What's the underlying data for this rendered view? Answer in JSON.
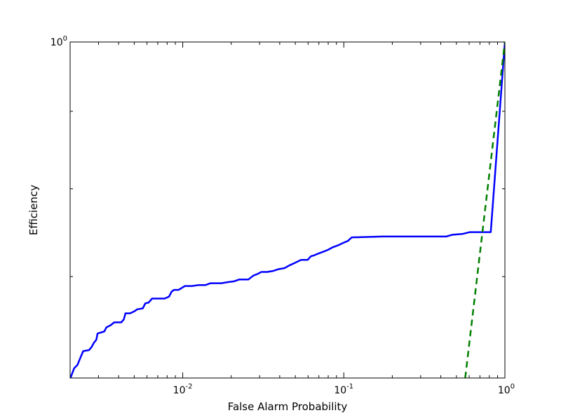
{
  "chart_data": {
    "type": "line",
    "title": "",
    "xlabel": "False Alarm Probability",
    "ylabel": "Efficiency",
    "xscale": "log",
    "yscale": "log",
    "xlim": [
      0.002,
      1.0
    ],
    "ylim": [
      0.6,
      1.0
    ],
    "grid": false,
    "x_tick_labels": [
      {
        "base": "10",
        "exp": "-2",
        "value": 0.01
      },
      {
        "base": "10",
        "exp": "-1",
        "value": 0.1
      },
      {
        "base": "10",
        "exp": "0",
        "value": 1.0
      }
    ],
    "y_tick_labels": [
      {
        "base": "10",
        "exp": "0",
        "value": 1.0
      }
    ],
    "series": [
      {
        "color": "#0000ff",
        "style": "solid",
        "points": [
          [
            0.00201,
            0.6
          ],
          [
            0.00207,
            0.605
          ],
          [
            0.00212,
            0.609
          ],
          [
            0.00222,
            0.612
          ],
          [
            0.00232,
            0.619
          ],
          [
            0.00241,
            0.625
          ],
          [
            0.00262,
            0.626
          ],
          [
            0.00272,
            0.629
          ],
          [
            0.00281,
            0.633
          ],
          [
            0.00291,
            0.636
          ],
          [
            0.00296,
            0.642
          ],
          [
            0.00311,
            0.643
          ],
          [
            0.00326,
            0.644
          ],
          [
            0.00336,
            0.648
          ],
          [
            0.00356,
            0.65
          ],
          [
            0.00376,
            0.653
          ],
          [
            0.00416,
            0.653
          ],
          [
            0.00431,
            0.656
          ],
          [
            0.00441,
            0.662
          ],
          [
            0.00471,
            0.662
          ],
          [
            0.00501,
            0.664
          ],
          [
            0.00521,
            0.666
          ],
          [
            0.00565,
            0.667
          ],
          [
            0.00585,
            0.672
          ],
          [
            0.00615,
            0.673
          ],
          [
            0.00645,
            0.677
          ],
          [
            0.00773,
            0.677
          ],
          [
            0.00822,
            0.679
          ],
          [
            0.00852,
            0.684
          ],
          [
            0.00881,
            0.686
          ],
          [
            0.00941,
            0.686
          ],
          [
            0.0103,
            0.69
          ],
          [
            0.0114,
            0.69
          ],
          [
            0.0125,
            0.691
          ],
          [
            0.0138,
            0.691
          ],
          [
            0.0149,
            0.693
          ],
          [
            0.0174,
            0.693
          ],
          [
            0.0188,
            0.694
          ],
          [
            0.0208,
            0.695
          ],
          [
            0.0225,
            0.697
          ],
          [
            0.0256,
            0.697
          ],
          [
            0.0274,
            0.701
          ],
          [
            0.0293,
            0.703
          ],
          [
            0.0308,
            0.705
          ],
          [
            0.0335,
            0.705
          ],
          [
            0.0363,
            0.706
          ],
          [
            0.0394,
            0.708
          ],
          [
            0.0427,
            0.709
          ],
          [
            0.0459,
            0.712
          ],
          [
            0.05,
            0.715
          ],
          [
            0.0543,
            0.718
          ],
          [
            0.0596,
            0.718
          ],
          [
            0.0625,
            0.722
          ],
          [
            0.0654,
            0.723
          ],
          [
            0.0695,
            0.725
          ],
          [
            0.0747,
            0.727
          ],
          [
            0.0796,
            0.729
          ],
          [
            0.0855,
            0.732
          ],
          [
            0.0918,
            0.734
          ],
          [
            0.0997,
            0.737
          ],
          [
            0.106,
            0.739
          ],
          [
            0.112,
            0.743
          ],
          [
            0.174,
            0.744
          ],
          [
            0.277,
            0.744
          ],
          [
            0.433,
            0.744
          ],
          [
            0.472,
            0.746
          ],
          [
            0.549,
            0.747
          ],
          [
            0.606,
            0.749
          ],
          [
            0.817,
            0.749
          ],
          [
            1.0,
            1.0
          ]
        ]
      },
      {
        "color": "#008000",
        "style": "dashed",
        "points": [
          [
            0.567,
            0.6
          ],
          [
            1.0,
            1.0
          ]
        ]
      }
    ]
  }
}
